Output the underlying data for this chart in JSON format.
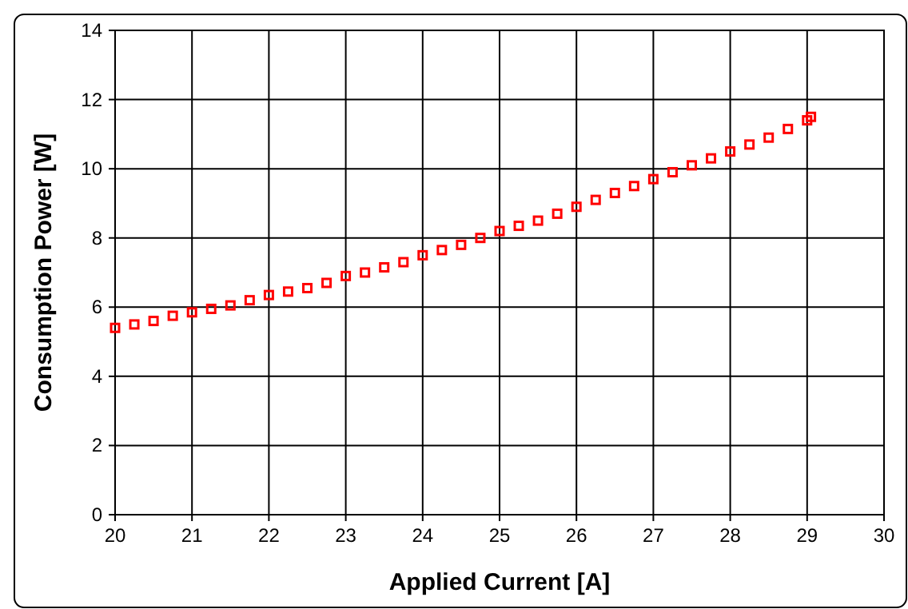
{
  "chart_data": {
    "type": "scatter",
    "xlabel": "Applied Current [A]",
    "ylabel": "Consumption Power [W]",
    "x": [
      20,
      20.25,
      20.5,
      20.75,
      21,
      21.25,
      21.5,
      21.75,
      22,
      22.25,
      22.5,
      22.75,
      23,
      23.25,
      23.5,
      23.75,
      24,
      24.25,
      24.5,
      24.75,
      25,
      25.25,
      25.5,
      25.75,
      26,
      26.25,
      26.5,
      26.75,
      27,
      27.25,
      27.5,
      27.75,
      28,
      28.25,
      28.5,
      28.75,
      29,
      29.05
    ],
    "series": [
      {
        "color": "#ff0000",
        "values": [
          5.4,
          5.5,
          5.6,
          5.75,
          5.85,
          5.95,
          6.05,
          6.2,
          6.35,
          6.45,
          6.55,
          6.7,
          6.9,
          7.0,
          7.15,
          7.3,
          7.5,
          7.65,
          7.8,
          8.0,
          8.2,
          8.35,
          8.5,
          8.7,
          8.9,
          9.1,
          9.3,
          9.5,
          9.7,
          9.9,
          10.1,
          10.3,
          10.5,
          10.7,
          10.9,
          11.15,
          11.4,
          11.5
        ]
      }
    ],
    "xlim": [
      20,
      30
    ],
    "xticks": [
      20,
      21,
      22,
      23,
      24,
      25,
      26,
      27,
      28,
      29,
      30
    ],
    "ylim": [
      0,
      14
    ],
    "yticks": [
      0,
      2,
      4,
      6,
      8,
      10,
      12,
      14
    ],
    "grid": true,
    "marker": "square"
  }
}
